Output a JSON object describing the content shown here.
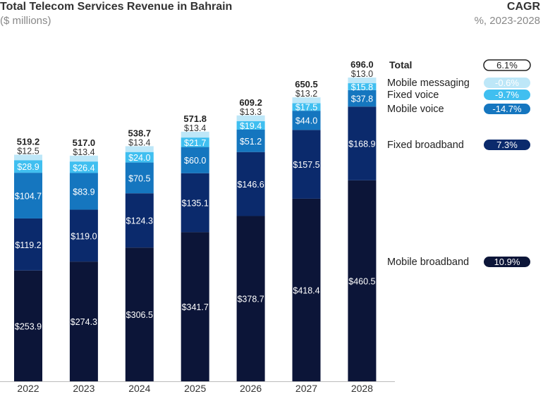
{
  "chart_data": {
    "type": "bar",
    "stacked": true,
    "title": "Total Telecom Services Revenue in Bahrain",
    "subtitle": "($ millions)",
    "cagr_title": "CAGR",
    "cagr_subtitle": "%, 2023-2028",
    "categories": [
      "2022",
      "2023",
      "2024",
      "2025",
      "2026",
      "2027",
      "2028"
    ],
    "totals": [
      "519.2",
      "517.0",
      "538.7",
      "571.8",
      "609.2",
      "650.5",
      "696.0"
    ],
    "series": [
      {
        "name": "Mobile broadband",
        "color": "#0c1538",
        "label_color": "#ffffff",
        "cagr": "10.9%",
        "values": [
          253.9,
          274.3,
          306.5,
          341.7,
          378.7,
          418.4,
          460.5
        ]
      },
      {
        "name": "Fixed broadband",
        "color": "#0b2a6c",
        "label_color": "#ffffff",
        "cagr": "7.3%",
        "values": [
          119.2,
          119.0,
          124.3,
          135.1,
          146.6,
          157.5,
          168.9
        ]
      },
      {
        "name": "Mobile voice",
        "color": "#1576bf",
        "label_color": "#ffffff",
        "cagr": "-14.7%",
        "values": [
          104.7,
          83.9,
          70.5,
          60.0,
          51.2,
          44.0,
          37.8
        ]
      },
      {
        "name": "Fixed voice",
        "color": "#40bff0",
        "label_color": "#ffffff",
        "cagr": "-9.7%",
        "values": [
          28.9,
          26.4,
          24.0,
          21.7,
          19.4,
          17.5,
          15.8
        ]
      },
      {
        "name": "Mobile messaging",
        "color": "#bde7f8",
        "label_color": "#333333",
        "cagr": "-0.6%",
        "values": [
          12.5,
          13.4,
          13.4,
          13.4,
          13.3,
          13.2,
          13.0
        ]
      }
    ],
    "total_legend": {
      "name": "Total",
      "cagr": "6.1%"
    },
    "ylim": [
      0,
      700
    ],
    "grid": false,
    "legend_placement": "right"
  }
}
